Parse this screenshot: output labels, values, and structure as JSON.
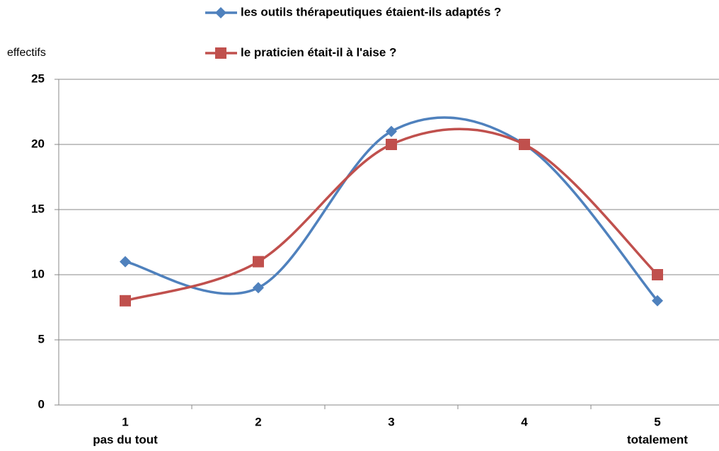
{
  "chart_data": {
    "type": "line",
    "smooth": true,
    "y_axis_label": "effectifs",
    "categories": [
      "1",
      "2",
      "3",
      "4",
      "5"
    ],
    "x_sublabels": [
      "pas du tout",
      null,
      null,
      null,
      "totalement"
    ],
    "series": [
      {
        "name": "les outils thérapeutiques étaient-ils adaptés ?",
        "color": "#4f81bd",
        "marker": "diamond",
        "values": [
          11,
          9,
          21,
          20,
          8
        ]
      },
      {
        "name": "le praticien était-il à l'aise ?",
        "color": "#c0504d",
        "marker": "square",
        "values": [
          8,
          11,
          20,
          20,
          10
        ]
      }
    ],
    "ylim": [
      0,
      25
    ],
    "yticks": [
      0,
      5,
      10,
      15,
      20,
      25
    ],
    "grid": true
  }
}
